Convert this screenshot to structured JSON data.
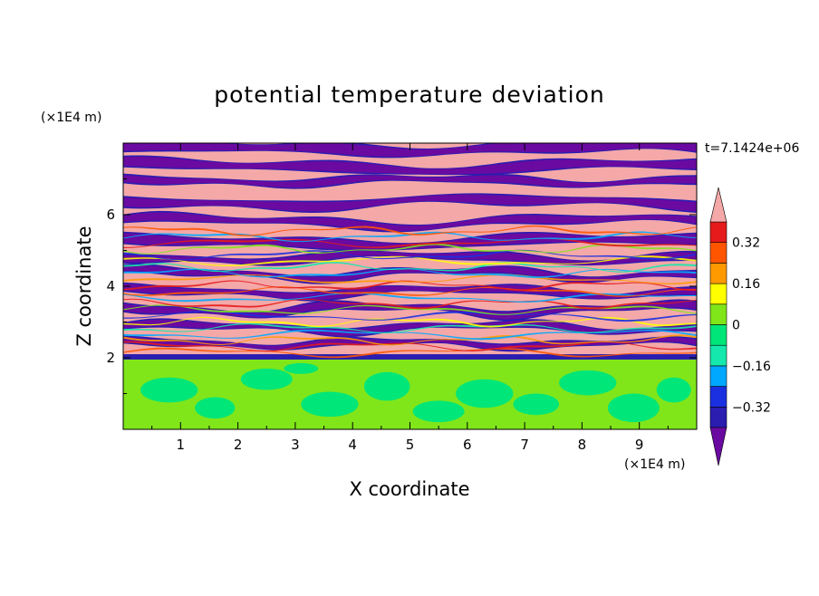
{
  "chart_data": {
    "type": "heatmap",
    "title": "potential temperature deviation",
    "xlabel": "X coordinate",
    "ylabel": "Z coordinate",
    "x_unit": "(×1E4 m)",
    "y_unit": "(×1E4 m)",
    "time_label": "t=7.1424e+06",
    "xlim": [
      0,
      10
    ],
    "ylim": [
      0,
      8
    ],
    "x_ticks": [
      "1",
      "2",
      "3",
      "4",
      "5",
      "6",
      "7",
      "8",
      "9"
    ],
    "y_ticks": [
      "2",
      "4",
      "6"
    ],
    "colorbar": {
      "levels": [
        -0.4,
        -0.32,
        -0.24,
        -0.16,
        -0.08,
        0,
        0.08,
        0.16,
        0.24,
        0.32,
        0.4
      ],
      "tick_labels": [
        "-0.32",
        "-0.16",
        "0",
        "0.16",
        "0.32"
      ],
      "colors": [
        "#6a0aa0",
        "#2a1db0",
        "#1a30e0",
        "#00a8ff",
        "#14e8ac",
        "#00e678",
        "#80e61a",
        "#ffff00",
        "#ff9900",
        "#ff5500",
        "#e51a1a",
        "#f4a8a8"
      ],
      "extend": "both"
    },
    "regions": [
      {
        "z": [
          0,
          2
        ],
        "level": "0 to 0.08 with patches -0.08 to 0"
      },
      {
        "z": [
          2,
          8
        ],
        "level": "layered bands alternating between >0.4 and <-0.4, mixed values around z 2-5.5"
      }
    ]
  }
}
